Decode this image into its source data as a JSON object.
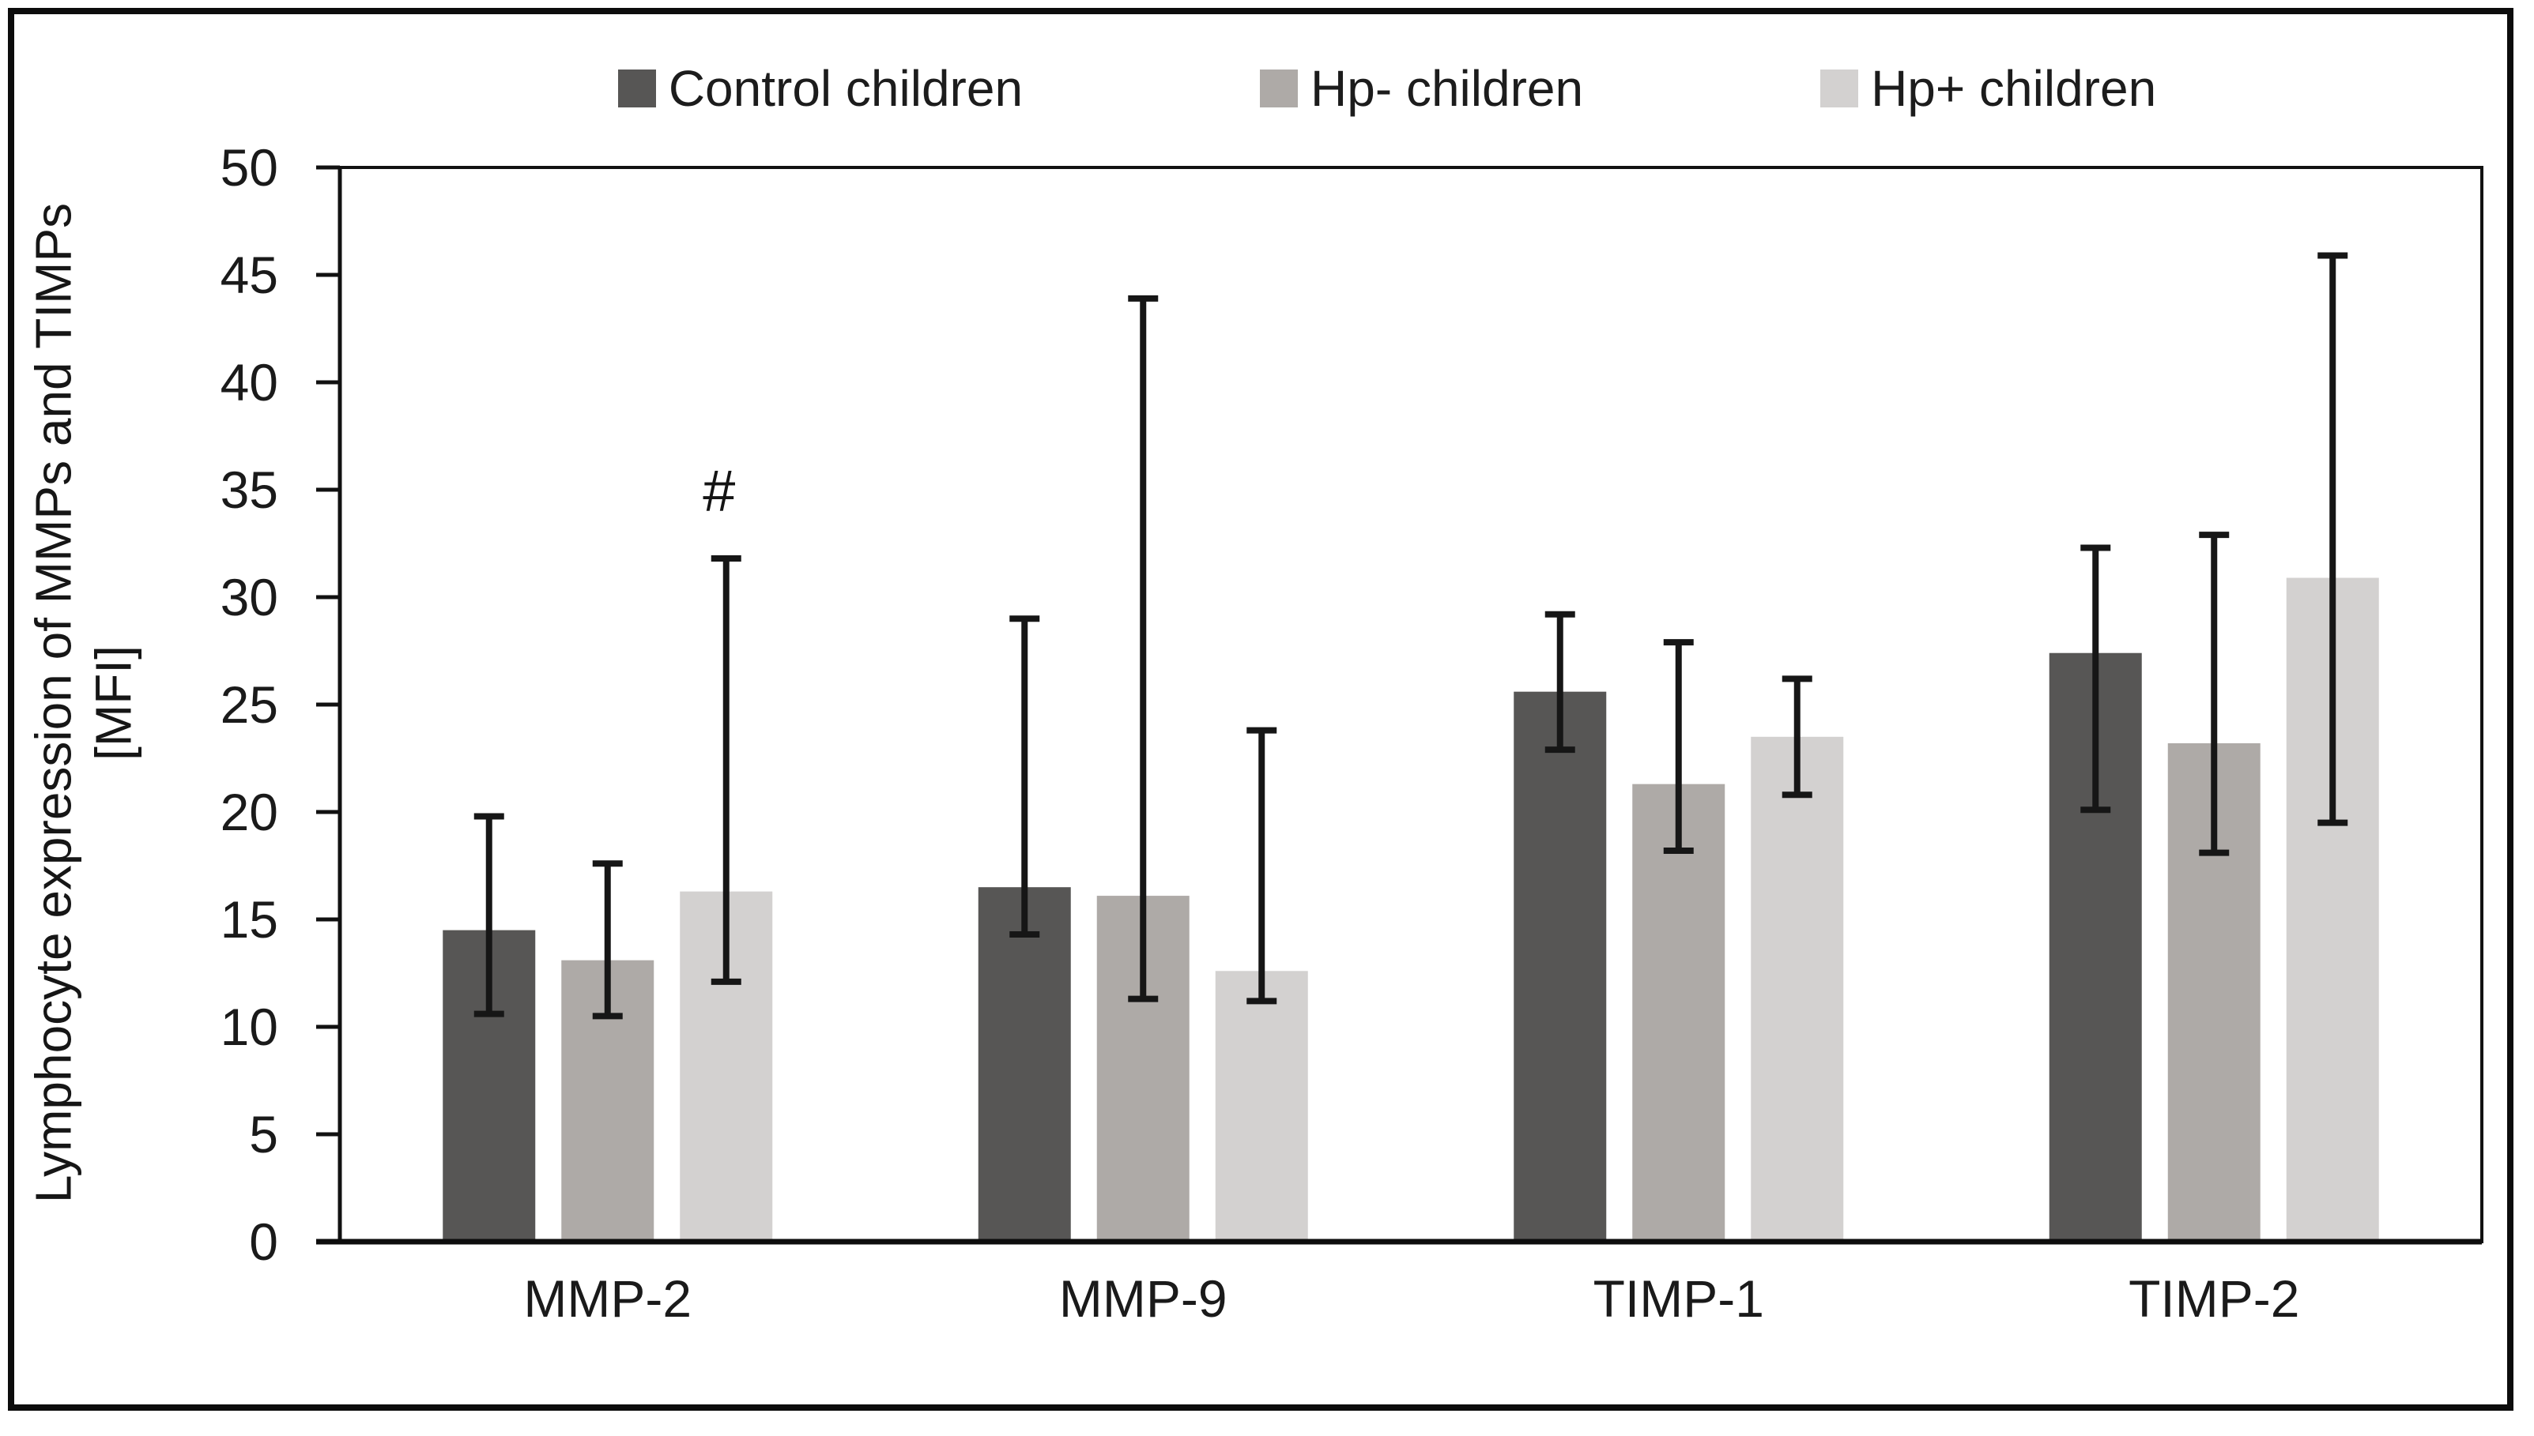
{
  "figure": {
    "background_color": "#ffffff",
    "border_color": "#0c0c0c",
    "text_color": "#1a1a1a"
  },
  "chart_data": {
    "type": "bar",
    "title": "",
    "ylabel": "Lymphocyte expression of MMPs and TIMPs",
    "ylabel_unit": "[MFI]",
    "xlabel": "",
    "ylim": [
      0,
      50
    ],
    "yticks": [
      0,
      5,
      10,
      15,
      20,
      25,
      30,
      35,
      40,
      45,
      50
    ],
    "grid": false,
    "legend_position": "top-center",
    "error_bars": true,
    "axis_color": "#111111",
    "error_bar_color": "#161616",
    "categories": [
      "MMP-2",
      "MMP-9",
      "TIMP-1",
      "TIMP-2"
    ],
    "series": [
      {
        "key": "control",
        "name": "Control children",
        "color": "#575655",
        "values": [
          14.5,
          16.5,
          25.6,
          27.4
        ],
        "error_low": [
          10.6,
          14.3,
          22.9,
          20.1
        ],
        "error_high": [
          19.8,
          29.0,
          29.2,
          32.3
        ]
      },
      {
        "key": "hp-minus",
        "name": "Hp- children",
        "color": "#aeaaa7",
        "values": [
          13.1,
          16.1,
          21.3,
          23.2
        ],
        "error_low": [
          10.5,
          11.3,
          18.2,
          18.1
        ],
        "error_high": [
          17.6,
          43.9,
          27.9,
          32.9
        ]
      },
      {
        "key": "hp-plus",
        "name": "Hp+ children",
        "color": "#d3d1d0",
        "values": [
          16.3,
          12.6,
          23.5,
          30.9
        ],
        "error_low": [
          12.1,
          11.2,
          20.8,
          19.5
        ],
        "error_high": [
          31.8,
          23.8,
          26.2,
          45.9
        ]
      }
    ],
    "annotations": [
      {
        "text": "#",
        "category_index": 0,
        "series_index": 2,
        "y": 34
      }
    ]
  }
}
